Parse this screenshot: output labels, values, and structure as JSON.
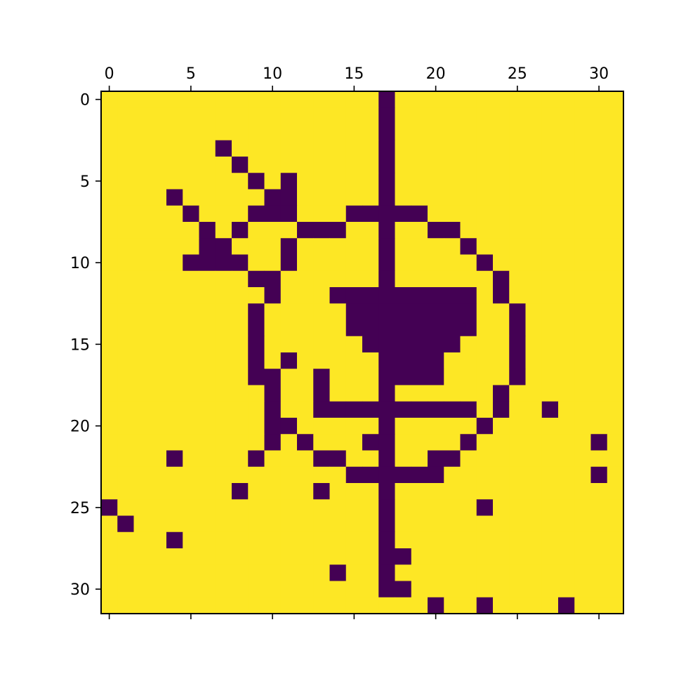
{
  "chart_data": {
    "type": "heatmap",
    "title": "",
    "xlabel": "",
    "ylabel": "",
    "rows": 32,
    "cols": 32,
    "xlim": [
      -0.5,
      31.5
    ],
    "ylim": [
      31.5,
      -0.5
    ],
    "x_ticks": [
      0,
      5,
      10,
      15,
      20,
      25,
      30
    ],
    "y_ticks": [
      0,
      5,
      10,
      15,
      20,
      25,
      30
    ],
    "x_tick_position": "top",
    "colormap": "viridis",
    "colors": {
      "low": "#440154",
      "high": "#fde725"
    },
    "grid": false,
    "matrix": [
      "11111111111111111011111111111111",
      "11111111111111111011111111111111",
      "11111111111111111011111111111111",
      "11111110111111111011111111111111",
      "11111111011111111011111111111111",
      "11111111101011111011111111111111",
      "11110111110011111011111111111111",
      "11111011100011100000111111111111",
      "11111101011100011011001111111111",
      "11111100111011111011110111111111",
      "11111000011011111011111011111111",
      "11111111100111111011111101111111",
      "11111111110111000000000101111111",
      "11111111101111100000000110111111",
      "11111111101111100000000110111111",
      "11111111101111110000001110111111",
      "11111111101011111000011110111111",
      "11111111100110111000011110111111",
      "11111111110110111011111101111111",
      "11111111110110000000000101101111",
      "11111111110011111011111011111111",
      "11111111110101110011110111111101",
      "11110111101110011011001111111111",
      "11111111111111100000011111111101",
      "11111111011110111011111111111111",
      "01111111111111111011111011111111",
      "10111111111111111011111111111111",
      "11110111111111111011111111111111",
      "11111111111111111001111111111111",
      "11111111111111011011111111111111",
      "11111111111111111001111111111111",
      "11111111111111111111011011110111"
    ]
  }
}
